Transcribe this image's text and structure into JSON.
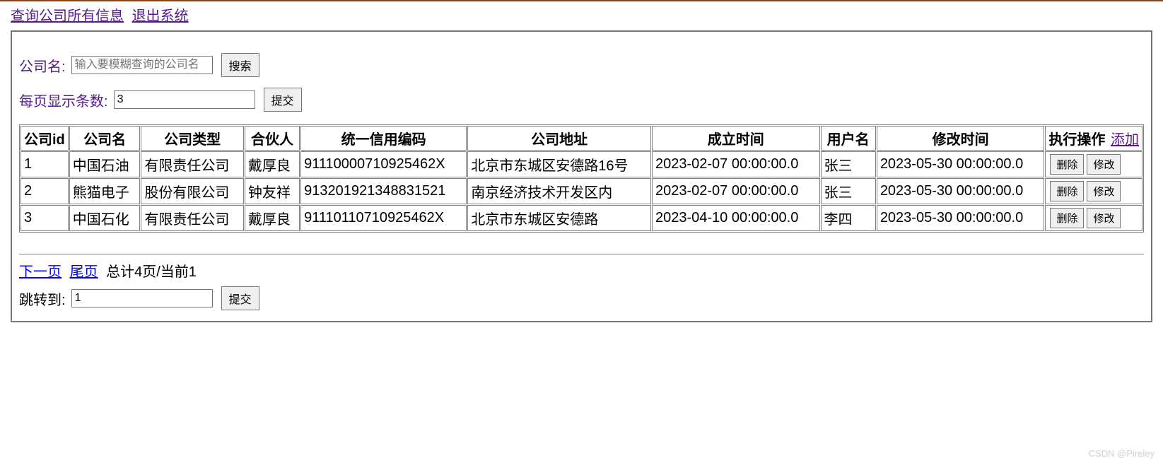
{
  "nav": {
    "query_all": "查询公司所有信息",
    "logout": "退出系统"
  },
  "search": {
    "label": "公司名:",
    "placeholder": "输入要模糊查询的公司名",
    "button": "搜索"
  },
  "page_size": {
    "label": "每页显示条数:",
    "value": "3",
    "button": "提交"
  },
  "table": {
    "headers": {
      "id": "公司id",
      "name": "公司名",
      "type": "公司类型",
      "partner": "合伙人",
      "credit_code": "统一信用编码",
      "address": "公司地址",
      "founded_time": "成立时间",
      "username": "用户名",
      "modified_time": "修改时间",
      "actions": "执行操作",
      "add_link": "添加"
    },
    "row_buttons": {
      "delete": "删除",
      "edit": "修改"
    },
    "rows": [
      {
        "id": "1",
        "name": "中国石油",
        "type": "有限责任公司",
        "partner": "戴厚良",
        "credit_code": "91110000710925462X",
        "address": "北京市东城区安德路16号",
        "founded_time": "2023-02-07 00:00:00.0",
        "username": "张三",
        "modified_time": "2023-05-30 00:00:00.0"
      },
      {
        "id": "2",
        "name": "熊猫电子",
        "type": "股份有限公司",
        "partner": "钟友祥",
        "credit_code": "913201921348831521",
        "address": "南京经济技术开发区内",
        "founded_time": "2023-02-07 00:00:00.0",
        "username": "张三",
        "modified_time": "2023-05-30 00:00:00.0"
      },
      {
        "id": "3",
        "name": "中国石化",
        "type": "有限责任公司",
        "partner": "戴厚良",
        "credit_code": "91110110710925462X",
        "address": "北京市东城区安德路",
        "founded_time": "2023-04-10 00:00:00.0",
        "username": "李四",
        "modified_time": "2023-05-30 00:00:00.0"
      }
    ]
  },
  "pager": {
    "next": "下一页",
    "last": "尾页",
    "info": "总计4页/当前1",
    "jump_label": "跳转到:",
    "jump_value": "1",
    "jump_button": "提交"
  },
  "watermark": "CSDN @Pireley",
  "colors": {
    "visited_link": "#551a8b",
    "link": "#0000ee",
    "border": "#808080",
    "frame_border": "#767676",
    "button_bg": "#efefef",
    "top_border": "#8b4513",
    "watermark": "#d0d0d0"
  }
}
